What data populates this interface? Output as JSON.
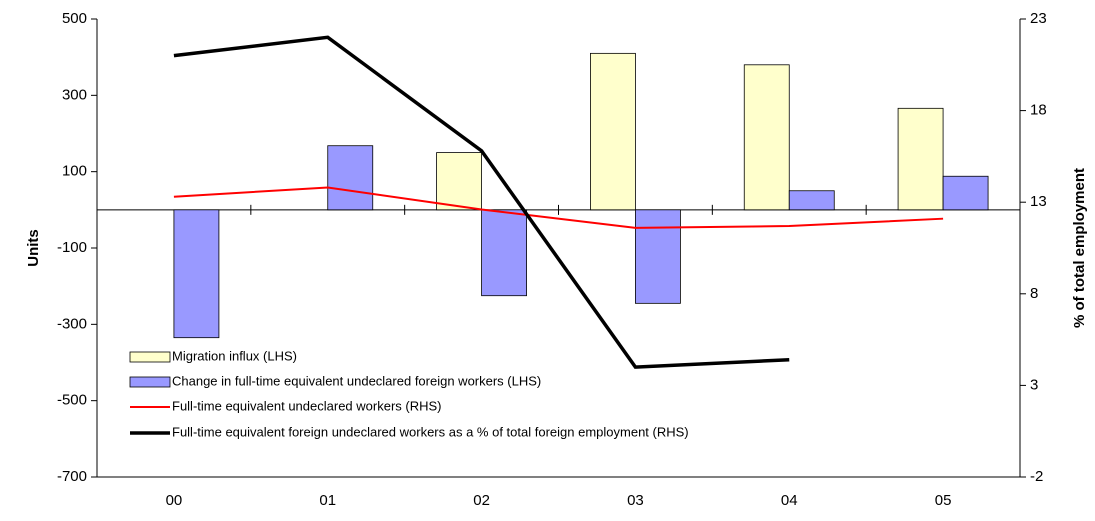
{
  "chart_data": {
    "type": "bar",
    "categories": [
      "00",
      "01",
      "02",
      "03",
      "04",
      "05"
    ],
    "y_label": "Units",
    "y2_label": "% of total employment",
    "ylim": [
      -700,
      500
    ],
    "yticks": [
      -700,
      -500,
      -300,
      -100,
      100,
      300,
      500
    ],
    "y2lim": [
      -2,
      23
    ],
    "y2ticks": [
      -2,
      3,
      8,
      13,
      18,
      23
    ],
    "series": [
      {
        "name": "Migration influx (LHS)",
        "type": "bar",
        "color": "#ffffcc",
        "values": [
          null,
          null,
          150,
          410,
          380,
          266
        ]
      },
      {
        "name": "Change in full-time equivalent undeclared foreign workers (LHS)",
        "type": "bar",
        "color": "#9999ff",
        "values": [
          -335,
          168,
          -225,
          -245,
          50,
          88
        ]
      },
      {
        "name": "Full-time equivalent undeclared workers (RHS)",
        "type": "line",
        "axis": "y2",
        "color": "#ff0000",
        "values": [
          13.3,
          13.8,
          12.6,
          11.6,
          11.7,
          12.1
        ]
      },
      {
        "name": "Full-time equivalent foreign undeclared workers as a % of total foreign employment (RHS)",
        "type": "line",
        "axis": "y2",
        "color": "#000000",
        "values": [
          21.0,
          22.0,
          15.8,
          4.0,
          4.4,
          null
        ]
      }
    ]
  }
}
